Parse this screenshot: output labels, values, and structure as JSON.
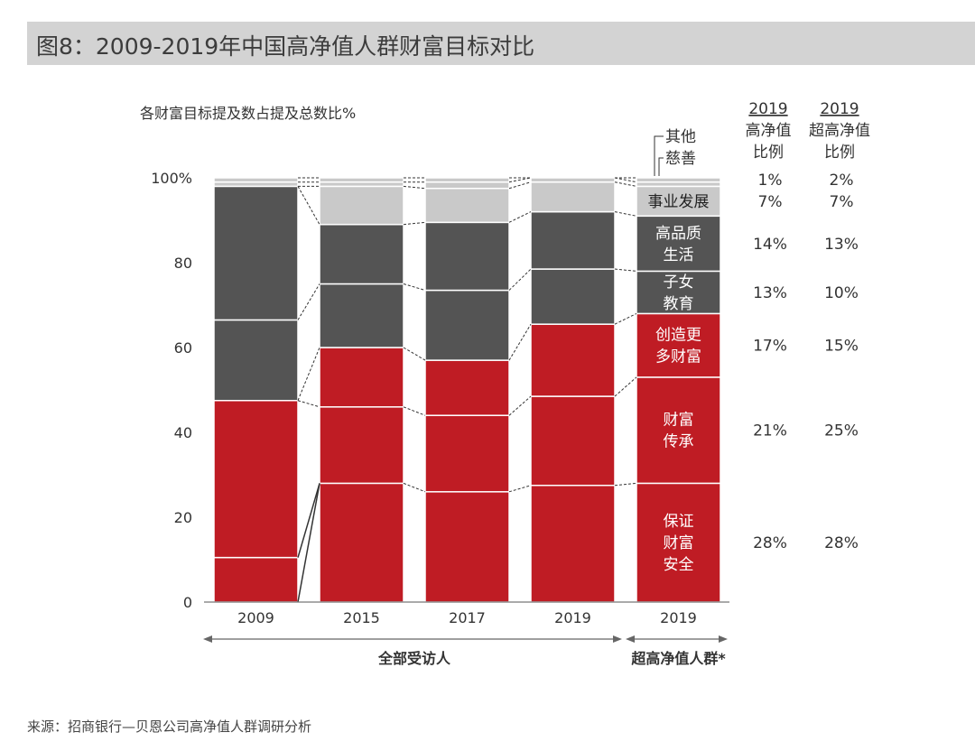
{
  "title": "图8：2009-2019年中国高净值人群财富目标对比",
  "source": "来源：招商银行—贝恩公司高净值人群调研分析",
  "colors": {
    "red": "#bf1c24",
    "dark": "#545454",
    "light": "#c9c9c9",
    "title_bg": "#d3d3d3"
  },
  "chart_data": {
    "type": "bar",
    "stacked": true,
    "ylabel": "各财富目标提及数占提及总数比%",
    "ylim": [
      0,
      100
    ],
    "yticks": [
      "0",
      "20",
      "40",
      "60",
      "80",
      "100%"
    ],
    "categories": [
      "2009",
      "2015",
      "2017",
      "2019",
      "2019"
    ],
    "groups": [
      {
        "label": "全部受访人",
        "from": 0,
        "to": 3
      },
      {
        "label": "超高净值人群*",
        "from": 4,
        "to": 4
      }
    ],
    "series": [
      {
        "name": "保证财富安全",
        "color": "red",
        "values": [
          10.5,
          28,
          26,
          27.5,
          28
        ]
      },
      {
        "name": "财富传承",
        "color": "red",
        "values": [
          37,
          18,
          18,
          21,
          25
        ]
      },
      {
        "name": "创造更多财富",
        "color": "red",
        "values": [
          0,
          14,
          13,
          17,
          15
        ]
      },
      {
        "name": "子女教育",
        "color": "dark",
        "values": [
          19,
          15,
          16.5,
          13,
          10
        ]
      },
      {
        "name": "高品质生活",
        "color": "dark",
        "values": [
          31.5,
          14,
          16,
          13.5,
          13
        ]
      },
      {
        "name": "事业发展",
        "color": "light",
        "values": [
          0,
          9,
          8,
          7,
          7
        ]
      },
      {
        "name": "慈善",
        "color": "light",
        "values": [
          1,
          1,
          1.5,
          1,
          1
        ]
      },
      {
        "name": "其他",
        "color": "light",
        "values": [
          1,
          1,
          1,
          0,
          1
        ]
      }
    ],
    "bar_labels": [
      {
        "text": "事业发展",
        "series": 5,
        "style": "dark-text"
      },
      {
        "text": "高品质\n生活",
        "series": 4,
        "style": "light-text"
      },
      {
        "text": "子女\n教育",
        "series": 3,
        "style": "light-text"
      },
      {
        "text": "创造更\n多财富",
        "series": 2,
        "style": "light-text"
      },
      {
        "text": "财富\n传承",
        "series": 1,
        "style": "light-text"
      },
      {
        "text": "保证\n财富\n安全",
        "series": 0,
        "style": "light-text"
      }
    ],
    "callouts": [
      "其他",
      "慈善"
    ],
    "table": {
      "headers": [
        {
          "year": "2019",
          "lines": [
            "高净值",
            "比例"
          ]
        },
        {
          "year": "2019",
          "lines": [
            "超高净值",
            "比例"
          ]
        }
      ],
      "rows": [
        {
          "series": 6.5,
          "values": [
            "1%",
            "2%"
          ]
        },
        {
          "series": 5,
          "values": [
            "7%",
            "7%"
          ]
        },
        {
          "series": 4,
          "values": [
            "14%",
            "13%"
          ]
        },
        {
          "series": 3,
          "values": [
            "13%",
            "10%"
          ]
        },
        {
          "series": 2,
          "values": [
            "17%",
            "15%"
          ]
        },
        {
          "series": 1,
          "values": [
            "21%",
            "25%"
          ]
        },
        {
          "series": 0,
          "values": [
            "28%",
            "28%"
          ]
        }
      ]
    }
  }
}
